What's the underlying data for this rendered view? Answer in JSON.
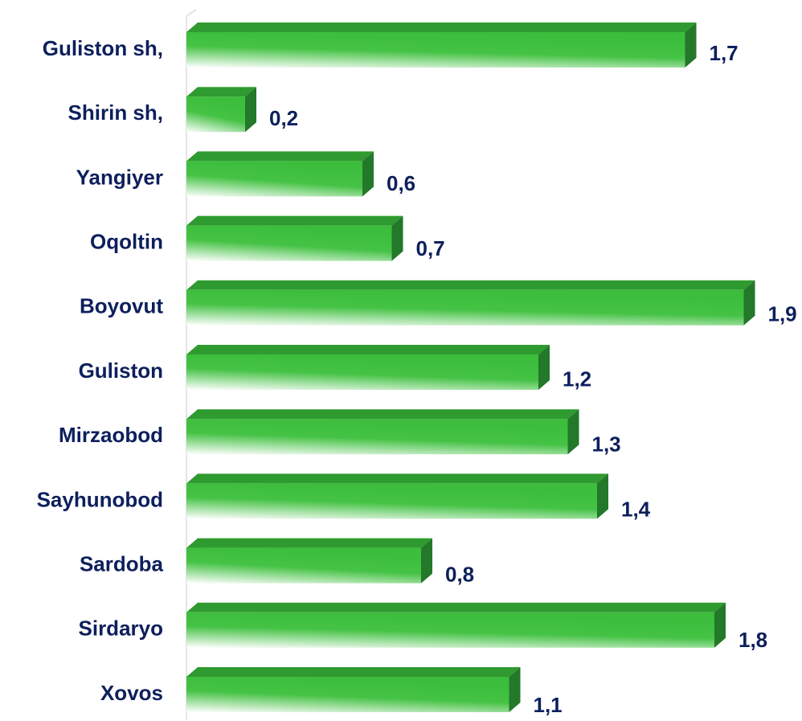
{
  "chart_data": {
    "type": "bar",
    "orientation": "horizontal",
    "categories": [
      "Guliston sh,",
      "Shirin sh,",
      "Yangiyer",
      "Oqoltin",
      "Boyovut",
      "Guliston",
      "Mirzaobod",
      "Sayhunobod",
      "Sardoba",
      "Sirdaryo",
      "Xovos"
    ],
    "values": [
      1.7,
      0.2,
      0.6,
      0.7,
      1.9,
      1.2,
      1.3,
      1.4,
      0.8,
      1.8,
      1.1
    ],
    "value_labels": [
      "1,7",
      "0,2",
      "0,6",
      "0,7",
      "1,9",
      "1,2",
      "1,3",
      "1,4",
      "0,8",
      "1,8",
      "1,1"
    ],
    "color": "#40c040"
  }
}
